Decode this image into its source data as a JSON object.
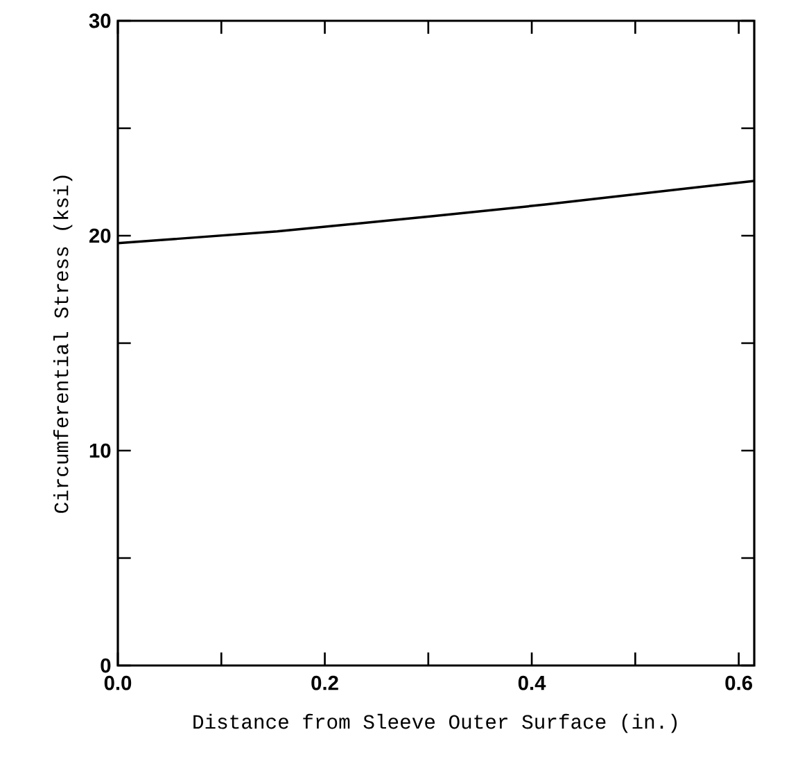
{
  "chart_data": {
    "type": "line",
    "xlabel": "Distance from Sleeve Outer Surface (in.)",
    "ylabel": "Circumferential Stress (ksi)",
    "x": [
      0,
      0.154,
      0.303,
      0.413,
      0.615
    ],
    "values": [
      19.65,
      20.2,
      20.9,
      21.45,
      22.55
    ],
    "color": "#000000",
    "xlim": [
      0,
      0.615
    ],
    "ylim": [
      0,
      30
    ],
    "xticks": [
      {
        "value": 0,
        "label": "0.0"
      },
      {
        "value": 0.1,
        "label": null
      },
      0.2,
      {
        "value": 0.3,
        "label": null
      },
      0.4,
      {
        "value": 0.5,
        "label": null
      },
      0.6
    ],
    "yticks": [
      0,
      {
        "value": 5,
        "label": null
      },
      10,
      {
        "value": 15,
        "label": null
      },
      20,
      {
        "value": 25,
        "label": null
      },
      30
    ],
    "grid": false,
    "marker": "none",
    "line_style": "solid"
  }
}
